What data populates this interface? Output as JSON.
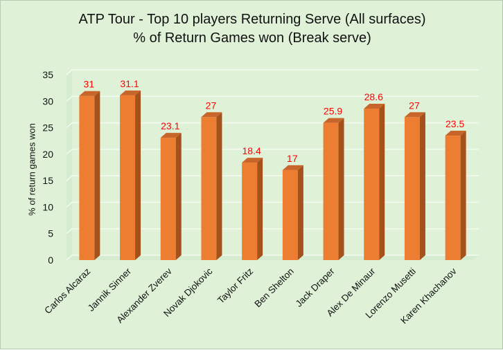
{
  "chart_data": {
    "type": "bar",
    "title": "ATP Tour - Top 10 players Returning Serve (All surfaces)",
    "subtitle": "% of Return Games won (Break serve)",
    "xlabel": "",
    "ylabel": "% of return games won",
    "ylim": [
      0,
      35
    ],
    "yticks": [
      0,
      5,
      10,
      15,
      20,
      25,
      30,
      35
    ],
    "grid": true,
    "categories": [
      "Carlos Alcaraz",
      "Jannik Sinner",
      "Alexander Zverev",
      "Novak Djokovic",
      "Taylor Fritz",
      "Ben Shelton",
      "Jack Draper",
      "Alex De Minaur",
      "Lorenzo Musetti",
      "Karen Khachanov"
    ],
    "values": [
      31,
      31.1,
      23.1,
      27,
      18.4,
      17,
      25.9,
      28.6,
      27,
      23.5
    ],
    "data_labels": [
      "31",
      "31.1",
      "23.1",
      "27",
      "18.4",
      "17",
      "25.9",
      "28.6",
      "27",
      "23.5"
    ],
    "colors": {
      "bar_front": "#ED7D31",
      "bar_side": "#A4511B",
      "bar_top": "#C8652A",
      "data_label": "#FF0000",
      "background": "#DFF2D8",
      "gridline": "#F4FAF1"
    }
  }
}
